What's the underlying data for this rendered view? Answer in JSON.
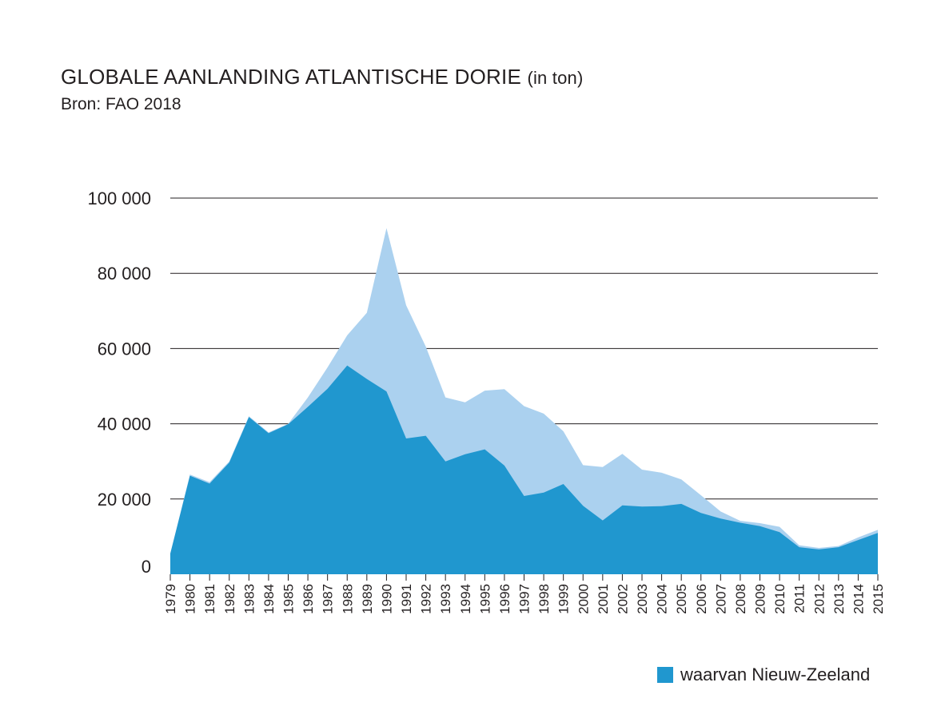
{
  "header": {
    "title": "GLOBALE AANLANDING ATLANTISCHE DORIE",
    "title_unit": "(in ton)",
    "source": "Bron: FAO 2018"
  },
  "colors": {
    "total": "#abd1ef",
    "nz": "#2097cf",
    "grid": "#231f20",
    "text": "#231f20"
  },
  "chart_data": {
    "type": "area",
    "x": [
      1979,
      1980,
      1981,
      1982,
      1983,
      1984,
      1985,
      1986,
      1987,
      1988,
      1989,
      1990,
      1991,
      1992,
      1993,
      1994,
      1995,
      1996,
      1997,
      1998,
      1999,
      2000,
      2001,
      2002,
      2003,
      2004,
      2005,
      2006,
      2007,
      2008,
      2009,
      2010,
      2011,
      2012,
      2013,
      2014,
      2015
    ],
    "x_labels": [
      "1979",
      "1980",
      "1981",
      "1982",
      "1983",
      "1984",
      "1985",
      "1986",
      "1987",
      "1988",
      "1989",
      "1990",
      "1991",
      "1992",
      "1993",
      "1994",
      "1995",
      "1996",
      "1997",
      "1998",
      "1999",
      "2000",
      "2001",
      "2002",
      "2003",
      "2004",
      "2005",
      "2006",
      "2007",
      "2008",
      "2009",
      "2010",
      "2011",
      "2012",
      "2013",
      "2014",
      "2015"
    ],
    "series": [
      {
        "role": "total",
        "values": [
          5500,
          26500,
          24500,
          30000,
          42000,
          37700,
          40000,
          47000,
          55000,
          63500,
          69500,
          92000,
          71500,
          60500,
          47000,
          45700,
          48800,
          49200,
          44700,
          42700,
          38000,
          29000,
          28500,
          32000,
          27800,
          27000,
          25200,
          21000,
          16700,
          14200,
          13600,
          12600,
          7700,
          7000,
          7500,
          9800,
          11800
        ]
      },
      {
        "name": "waarvan Nieuw-Zeeland",
        "role": "nz",
        "values": [
          5500,
          26200,
          24100,
          29700,
          41800,
          37500,
          39900,
          44500,
          49300,
          55500,
          51900,
          48600,
          36100,
          36800,
          30000,
          31900,
          33200,
          28900,
          20800,
          21700,
          24000,
          18200,
          14300,
          18300,
          18000,
          18100,
          18700,
          16300,
          14800,
          13700,
          12800,
          11200,
          7200,
          6600,
          7200,
          9100,
          11000
        ]
      }
    ],
    "y_ticks": [
      "100 000",
      "80 000",
      "60 000",
      "40 000",
      "20 000",
      "0"
    ],
    "y_tick_values": [
      100000,
      80000,
      60000,
      40000,
      20000,
      0
    ],
    "ylim": [
      0,
      100000
    ],
    "grid": true,
    "legend": {
      "position": "bottom-right",
      "label": "waarvan Nieuw-Zeeland"
    }
  }
}
